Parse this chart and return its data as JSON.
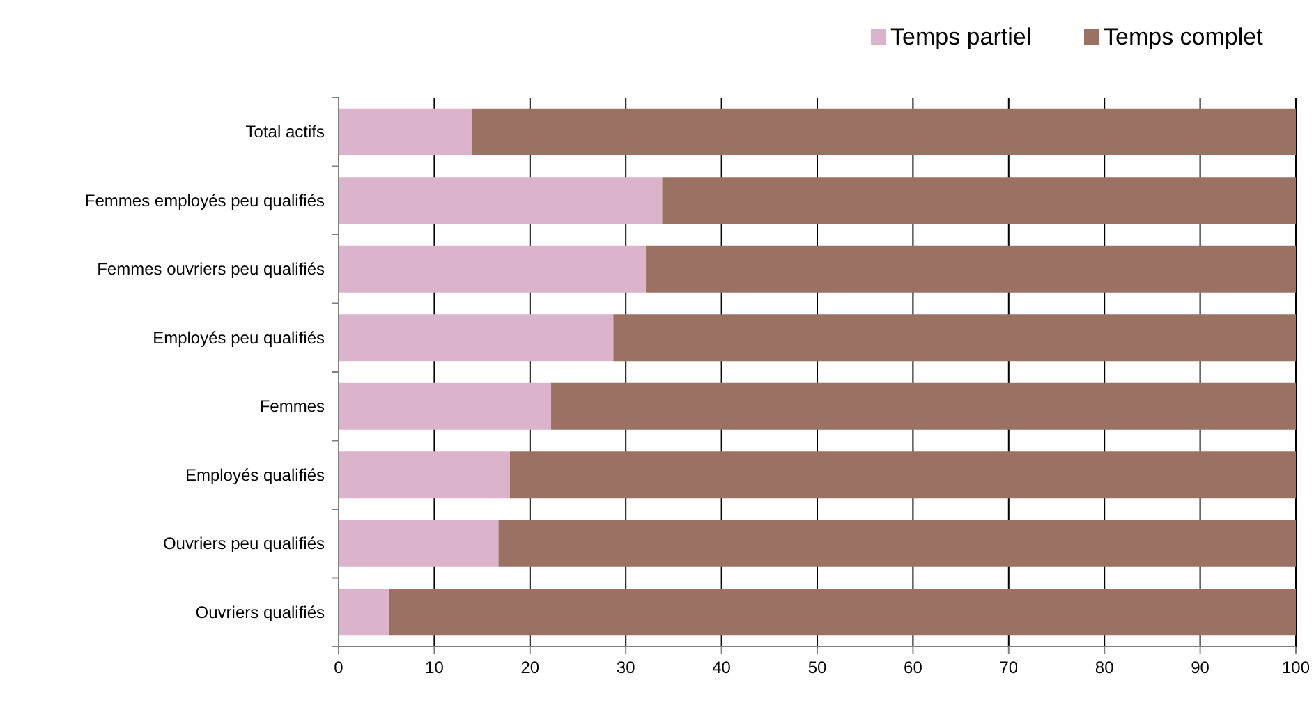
{
  "chart_data": {
    "type": "bar",
    "orientation": "horizontal",
    "stacked": true,
    "categories": [
      "Total actifs",
      "Femmes employés peu qualifiés",
      "Femmes ouvriers peu qualifiés",
      "Employés peu qualifiés",
      "Femmes",
      "Employés qualifiés",
      "Ouvriers peu qualifiés",
      "Ouvriers qualifiés"
    ],
    "series": [
      {
        "name": "Temps partiel",
        "color": "#dbb3cb",
        "values": [
          13.9,
          33.8,
          32.1,
          28.7,
          22.2,
          17.9,
          16.7,
          5.3
        ]
      },
      {
        "name": "Temps complet",
        "color": "#9b7163",
        "values": [
          86.1,
          66.2,
          67.9,
          71.3,
          77.8,
          82.1,
          83.3,
          94.7
        ]
      }
    ],
    "xlim": [
      0,
      100
    ],
    "xticks": [
      0,
      10,
      20,
      30,
      40,
      50,
      60,
      70,
      80,
      90,
      100
    ],
    "grid": "x",
    "legend": "top right"
  }
}
